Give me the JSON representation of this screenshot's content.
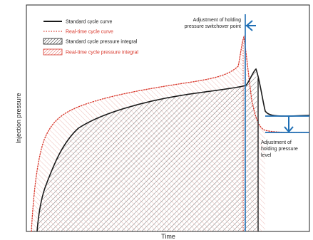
{
  "chart_data": {
    "type": "line",
    "title": "",
    "xlabel": "Time",
    "ylabel": "Injection pressure",
    "grid": false,
    "legend_position": "top-left",
    "colors": {
      "standard": "#1a1a1a",
      "realtime": "#d9372b",
      "annotation": "#1f6fb5"
    },
    "legend": [
      {
        "label": "Standard cycle curve",
        "style": "solid-line",
        "color": "#1a1a1a"
      },
      {
        "label": "Real-time cycle curve",
        "style": "dotted-line",
        "color": "#d9372b"
      },
      {
        "label": "Standard cycle pressure integral",
        "style": "hatched-box",
        "color": "#1a1a1a"
      },
      {
        "label": "Real-time cycle pressure integral",
        "style": "hatched-box",
        "color": "#d9372b"
      }
    ],
    "annotations": {
      "switchover": [
        "Adjustment of holding",
        "pressure switchover point"
      ],
      "holding_level": [
        "Adjustment of",
        "holding pressure",
        "level"
      ]
    }
  }
}
